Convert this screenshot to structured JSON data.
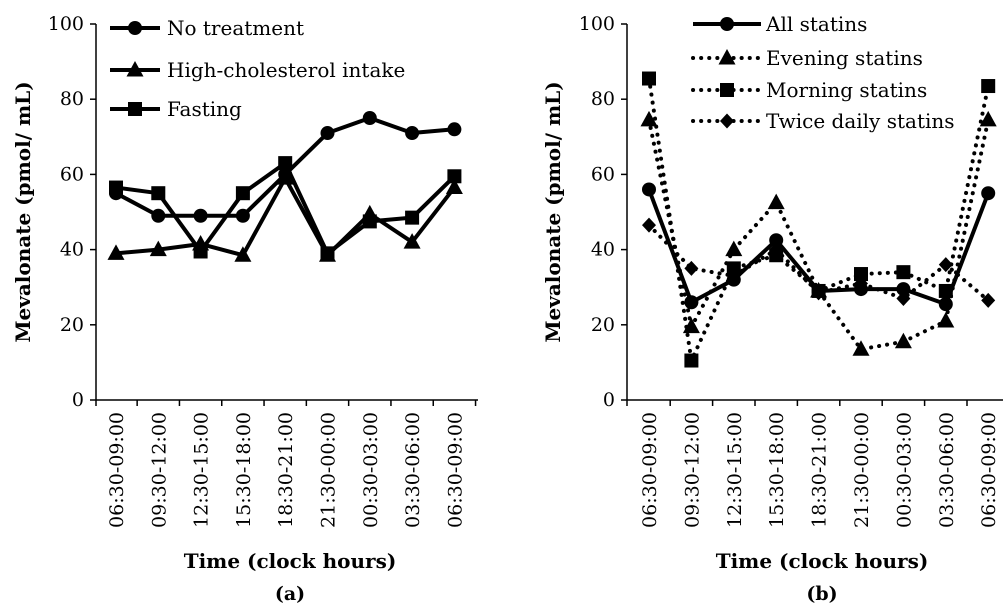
{
  "chart_data": [
    {
      "type": "line",
      "panel_label": "(a)",
      "xlabel": "Time (clock hours)",
      "ylabel": "Mevalonate (pmol/ mL)",
      "ylim": [
        0,
        100
      ],
      "yticks": [
        0,
        20,
        40,
        60,
        80,
        100
      ],
      "grid": false,
      "legend_position": "top-left",
      "categories": [
        "06:30-09:00",
        "09:30-12:00",
        "12:30-15:00",
        "15:30-18:00",
        "18:30-21:00",
        "21:30-00:00",
        "00:30-03:00",
        "03:30-06:00",
        "06:30-09:00"
      ],
      "series": [
        {
          "name": "No treatment",
          "marker": "circle",
          "dash": "solid",
          "values": [
            55,
            49,
            49,
            49,
            60,
            71,
            75,
            71,
            72
          ]
        },
        {
          "name": "High-cholesterol intake",
          "marker": "triangle",
          "dash": "solid",
          "values": [
            39,
            40,
            41.5,
            38.5,
            59,
            38.5,
            49.5,
            42,
            56.5
          ]
        },
        {
          "name": "Fasting",
          "marker": "square",
          "dash": "solid",
          "values": [
            56.5,
            55,
            39.5,
            55,
            63,
            39,
            47.5,
            48.5,
            59.5
          ]
        }
      ]
    },
    {
      "type": "line",
      "panel_label": "(b)",
      "xlabel": "Time (clock hours)",
      "ylabel": "Mevalonate (pmol/ mL)",
      "ylim": [
        0,
        100
      ],
      "yticks": [
        0,
        20,
        40,
        60,
        80,
        100
      ],
      "grid": false,
      "legend_position": "top-right",
      "categories": [
        "06:30-09:00",
        "09:30-12:00",
        "12:30-15:00",
        "15:30-18:00",
        "18:30-21:00",
        "21:30-00:00",
        "00:30-03:00",
        "03:30-06:00",
        "06:30-09:00"
      ],
      "series": [
        {
          "name": "All statins",
          "marker": "circle",
          "dash": "solid",
          "values": [
            56,
            26,
            32,
            42.5,
            29,
            29.5,
            29.5,
            25.5,
            55
          ]
        },
        {
          "name": "Evening statins",
          "marker": "triangle",
          "dash": "dotted",
          "values": [
            74.5,
            19.5,
            40,
            52.5,
            29,
            13.5,
            15.5,
            21,
            74.5
          ]
        },
        {
          "name": "Morning statins",
          "marker": "square",
          "dash": "dotted",
          "values": [
            85.5,
            10.5,
            35,
            38.5,
            29,
            33.5,
            34,
            29,
            83.5
          ]
        },
        {
          "name": "Twice daily statins",
          "marker": "diamond",
          "dash": "dotted",
          "values": [
            46.5,
            35,
            33,
            40,
            28.5,
            31,
            27,
            36,
            26.5
          ]
        }
      ]
    }
  ]
}
